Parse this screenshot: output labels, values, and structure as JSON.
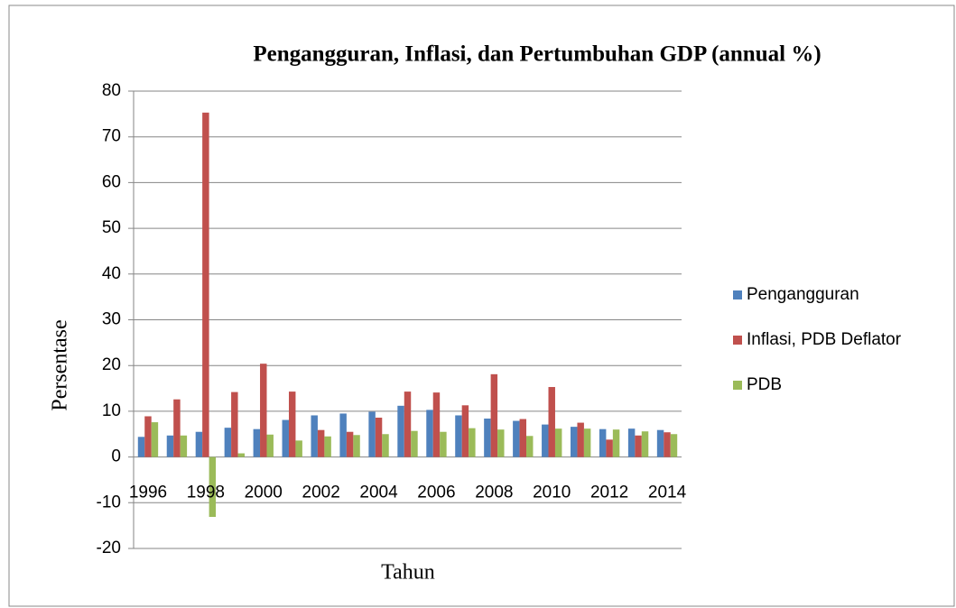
{
  "chart_data": {
    "type": "bar",
    "title": "Pengangguran, Inflasi, dan Pertumbuhan GDP (annual %)",
    "xlabel": "Tahun",
    "ylabel": "Persentase",
    "categories": [
      1996,
      null,
      1998,
      null,
      2000,
      null,
      2002,
      null,
      2004,
      null,
      2006,
      null,
      2008,
      null,
      2010,
      null,
      2012,
      null,
      2014
    ],
    "series": [
      {
        "name": "Pengangguran",
        "color": "#4f81bd",
        "values": [
          4.4,
          4.7,
          5.5,
          6.4,
          6.1,
          8.1,
          9.1,
          9.5,
          9.9,
          11.2,
          10.3,
          9.1,
          8.4,
          7.9,
          7.1,
          6.6,
          6.1,
          6.2,
          5.9
        ]
      },
      {
        "name": "Inflasi, PDB Deflator",
        "color": "#c0504d",
        "values": [
          8.9,
          12.6,
          75.3,
          14.2,
          20.4,
          14.3,
          5.9,
          5.5,
          8.6,
          14.3,
          14.1,
          11.3,
          18.1,
          8.3,
          15.3,
          7.5,
          3.8,
          4.7,
          5.4
        ]
      },
      {
        "name": "PDB",
        "color": "#9bbb59",
        "values": [
          7.6,
          4.7,
          -13.1,
          0.8,
          4.9,
          3.6,
          4.5,
          4.8,
          5.0,
          5.7,
          5.5,
          6.3,
          6.0,
          4.6,
          6.2,
          6.2,
          6.0,
          5.6,
          5.0
        ]
      }
    ],
    "ylim": [
      -20,
      80
    ],
    "yticks": [
      -20,
      -10,
      0,
      10,
      20,
      30,
      40,
      50,
      60,
      70,
      80
    ],
    "grid": true,
    "legend": "right"
  }
}
